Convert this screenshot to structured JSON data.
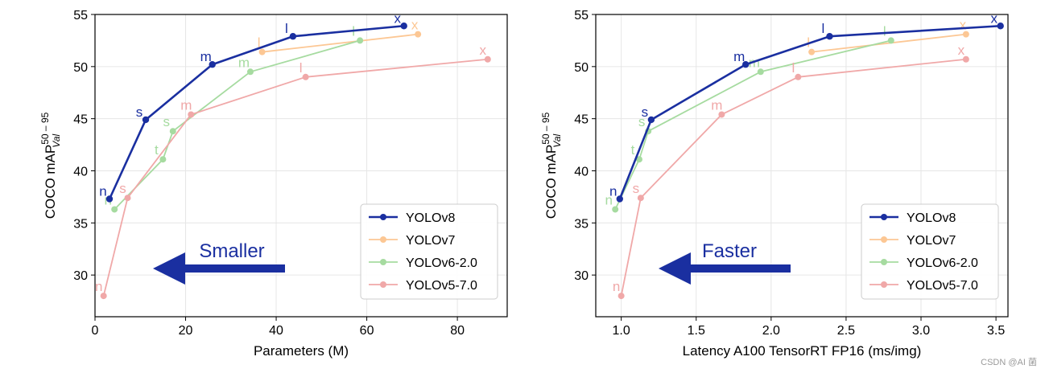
{
  "watermark": "CSDN @AI 菌",
  "chart_data": [
    {
      "type": "line",
      "ylabel": "COCO mAP",
      "ylabel_sup": "50 – 95",
      "ylabel_sub": "Val",
      "xlabel": "Parameters (M)",
      "xlim": [
        0,
        91
      ],
      "ylim": [
        26,
        55
      ],
      "xticks": [
        0,
        20,
        40,
        60,
        80
      ],
      "yticks": [
        30,
        35,
        40,
        45,
        50,
        55
      ],
      "grid": true,
      "legend_placement": "bottom-right",
      "arrow_label": "Smaller",
      "series": [
        {
          "name": "YOLOv8",
          "color": "#1a2fa0",
          "bold": true,
          "x": [
            3.2,
            11.2,
            25.9,
            43.7,
            68.2
          ],
          "y": [
            37.3,
            44.9,
            50.2,
            52.9,
            53.9
          ],
          "labels": [
            "n",
            "s",
            "m",
            "l",
            "x"
          ]
        },
        {
          "name": "YOLOv7",
          "color": "#fcc794",
          "bold": false,
          "x": [
            36.9,
            71.3
          ],
          "y": [
            51.4,
            53.1
          ],
          "labels": [
            "l",
            "x"
          ]
        },
        {
          "name": "YOLOv6-2.0",
          "color": "#a6dba0",
          "bold": false,
          "x": [
            4.3,
            15.0,
            17.2,
            34.3,
            58.5
          ],
          "y": [
            36.3,
            41.1,
            43.8,
            49.5,
            52.5
          ],
          "labels": [
            "n",
            "t",
            "s",
            "m",
            "l"
          ]
        },
        {
          "name": "YOLOv5-7.0",
          "color": "#f0a8a8",
          "bold": false,
          "x": [
            1.9,
            7.2,
            21.2,
            46.5,
            86.7
          ],
          "y": [
            28.0,
            37.4,
            45.4,
            49.0,
            50.7
          ],
          "labels": [
            "n",
            "s",
            "m",
            "l",
            "x"
          ]
        }
      ]
    },
    {
      "type": "line",
      "ylabel": "COCO mAP",
      "ylabel_sup": "50 – 95",
      "ylabel_sub": "Val",
      "xlabel": "Latency A100 TensorRT FP16 (ms/img)",
      "xlim": [
        0.83,
        3.58
      ],
      "ylim": [
        26,
        55
      ],
      "xticks": [
        1.0,
        1.5,
        2.0,
        2.5,
        3.0,
        3.5
      ],
      "yticks": [
        30,
        35,
        40,
        45,
        50,
        55
      ],
      "grid": true,
      "legend_placement": "bottom-right",
      "arrow_label": "Faster",
      "series": [
        {
          "name": "YOLOv8",
          "color": "#1a2fa0",
          "bold": true,
          "x": [
            0.99,
            1.2,
            1.83,
            2.39,
            3.53
          ],
          "y": [
            37.3,
            44.9,
            50.2,
            52.9,
            53.9
          ],
          "labels": [
            "n",
            "s",
            "m",
            "l",
            "x"
          ]
        },
        {
          "name": "YOLOv7",
          "color": "#fcc794",
          "bold": false,
          "x": [
            2.27,
            3.3
          ],
          "y": [
            51.4,
            53.1
          ],
          "labels": [
            "l",
            "x"
          ]
        },
        {
          "name": "YOLOv6-2.0",
          "color": "#a6dba0",
          "bold": false,
          "x": [
            0.96,
            1.12,
            1.18,
            1.93,
            2.8
          ],
          "y": [
            36.3,
            41.1,
            43.8,
            49.5,
            52.5
          ],
          "labels": [
            "n",
            "t",
            "s",
            "m",
            "l"
          ]
        },
        {
          "name": "YOLOv5-7.0",
          "color": "#f0a8a8",
          "bold": false,
          "x": [
            1.0,
            1.13,
            1.67,
            2.18,
            3.3
          ],
          "y": [
            28.0,
            37.4,
            45.4,
            49.0,
            50.7
          ],
          "labels": [
            "n",
            "s",
            "m",
            "l",
            "x"
          ]
        }
      ]
    }
  ]
}
